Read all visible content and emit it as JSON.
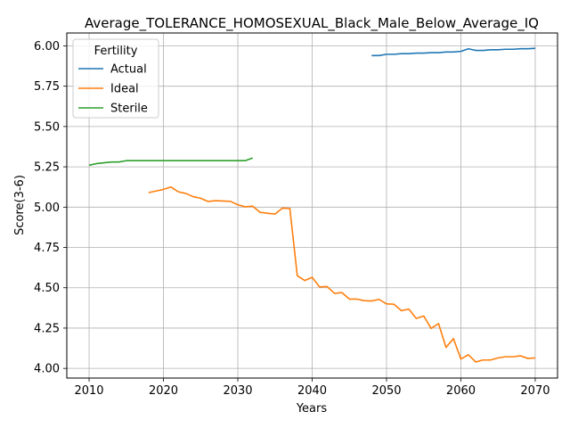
{
  "chart_data": {
    "type": "line",
    "title": "Average_TOLERANCE_HOMOSEXUAL_Black_Male_Below_Average_IQ",
    "xlabel": "Years",
    "ylabel": "Score(3-6)",
    "xlim": [
      2007,
      2073
    ],
    "ylim": [
      3.94,
      6.08
    ],
    "xticks": [
      2010,
      2020,
      2030,
      2040,
      2050,
      2060,
      2070
    ],
    "yticks": [
      4.0,
      4.25,
      4.5,
      4.75,
      5.0,
      5.25,
      5.5,
      5.75,
      6.0
    ],
    "xtick_labels": [
      "2010",
      "2020",
      "2030",
      "2040",
      "2050",
      "2060",
      "2070"
    ],
    "ytick_labels": [
      "4.00",
      "4.25",
      "4.50",
      "4.75",
      "5.00",
      "5.25",
      "5.50",
      "5.75",
      "6.00"
    ],
    "grid": true,
    "legend": {
      "title": "Fertility",
      "placement": "top-left"
    },
    "series": [
      {
        "name": "Actual",
        "color": "#1f77b4",
        "x": [
          2048,
          2049,
          2050,
          2051,
          2052,
          2053,
          2054,
          2055,
          2056,
          2057,
          2058,
          2059,
          2060,
          2061,
          2062,
          2063,
          2064,
          2065,
          2066,
          2067,
          2068,
          2069,
          2070
        ],
        "y": [
          5.94,
          5.94,
          5.948,
          5.948,
          5.952,
          5.952,
          5.955,
          5.955,
          5.958,
          5.958,
          5.962,
          5.962,
          5.966,
          5.982,
          5.972,
          5.972,
          5.976,
          5.976,
          5.979,
          5.979,
          5.982,
          5.982,
          5.985
        ]
      },
      {
        "name": "Ideal",
        "color": "#ff7f0e",
        "x": [
          2018,
          2019,
          2020,
          2021,
          2022,
          2023,
          2024,
          2025,
          2026,
          2027,
          2028,
          2029,
          2030,
          2031,
          2032,
          2033,
          2034,
          2035,
          2036,
          2037,
          2038,
          2039,
          2040,
          2041,
          2042,
          2043,
          2044,
          2045,
          2046,
          2047,
          2048,
          2049,
          2050,
          2051,
          2052,
          2053,
          2054,
          2055,
          2056,
          2057,
          2058,
          2059,
          2060,
          2061,
          2062,
          2063,
          2064,
          2065,
          2066,
          2067,
          2068,
          2069,
          2070
        ],
        "y": [
          5.09,
          5.1,
          5.11,
          5.125,
          5.095,
          5.085,
          5.065,
          5.055,
          5.035,
          5.04,
          5.038,
          5.036,
          5.015,
          5.002,
          5.006,
          4.968,
          4.962,
          4.957,
          4.994,
          4.992,
          4.575,
          4.545,
          4.565,
          4.505,
          4.508,
          4.465,
          4.47,
          4.43,
          4.43,
          4.42,
          4.418,
          4.428,
          4.4,
          4.398,
          4.358,
          4.368,
          4.31,
          4.325,
          4.248,
          4.278,
          4.13,
          4.185,
          4.058,
          4.085,
          4.04,
          4.052,
          4.052,
          4.065,
          4.072,
          4.072,
          4.078,
          4.062,
          4.065
        ]
      },
      {
        "name": "Sterile",
        "color": "#2ca02c",
        "x": [
          2010,
          2011,
          2012,
          2013,
          2014,
          2015,
          2016,
          2017,
          2018,
          2019,
          2020,
          2021,
          2022,
          2023,
          2024,
          2025,
          2026,
          2027,
          2028,
          2029,
          2030,
          2031,
          2032
        ],
        "y": [
          5.26,
          5.27,
          5.275,
          5.28,
          5.28,
          5.288,
          5.288,
          5.288,
          5.288,
          5.288,
          5.288,
          5.288,
          5.288,
          5.288,
          5.288,
          5.288,
          5.288,
          5.288,
          5.288,
          5.288,
          5.288,
          5.288,
          5.305
        ]
      }
    ]
  }
}
